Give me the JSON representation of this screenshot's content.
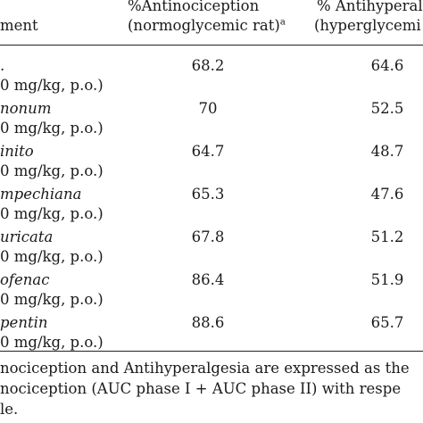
{
  "header": {
    "treatment": "ment",
    "col1_line1": "%Antinociception",
    "col1_line2": "(normoglycemic rat)",
    "col1_sup": "a",
    "col2_line1": "% Antihyperal",
    "col2_line2": "(hyperglycemi"
  },
  "rows": [
    {
      "name": ".",
      "dose": "0 mg/kg, p.o.)",
      "v1": "68.2",
      "v2": "64.6"
    },
    {
      "name": "nonum",
      "dose": "0 mg/kg, p.o.)",
      "v1": "70",
      "v2": "52.5"
    },
    {
      "name": "inito",
      "dose": "0 mg/kg, p.o.)",
      "v1": "64.7",
      "v2": "48.7"
    },
    {
      "name": "mpechiana",
      "dose": "0 mg/kg, p.o.)",
      "v1": "65.3",
      "v2": "47.6"
    },
    {
      "name": "uricata",
      "dose": "0 mg/kg, p.o.)",
      "v1": "67.8",
      "v2": "51.2"
    },
    {
      "name": "ofenac",
      "dose": "0 mg/kg, p.o.)",
      "v1": "86.4",
      "v2": "51.9"
    },
    {
      "name": "pentin",
      "dose": "0 mg/kg, p.o.)",
      "v1": "88.6",
      "v2": "65.7"
    }
  ],
  "footnote": {
    "line1": "nociception  and  Antihyperalgesia  are  expressed  as  the",
    "line2": "nociception  (AUC  phase  I + AUC  phase  II)  with  respe",
    "line3": "le."
  }
}
